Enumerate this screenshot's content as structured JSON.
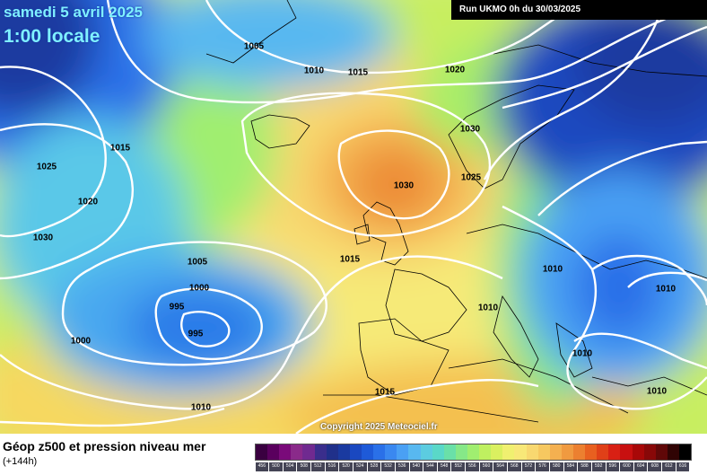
{
  "header": {
    "date": "samedi 5 avril 2025",
    "time": "1:00 locale",
    "run": "Run UKMO 0h du 30/03/2025",
    "copyright": "Copyright 2025 Meteociel.fr"
  },
  "legend": {
    "title": "Géop z500 et pression niveau mer",
    "subtitle": "(+144h)",
    "colors": [
      "#3a0040",
      "#5a005e",
      "#7a0a7a",
      "#8a2a8a",
      "#702a90",
      "#3a2e8c",
      "#20308a",
      "#1a3aa0",
      "#1a48c0",
      "#1e5ad8",
      "#2a70e8",
      "#3a88f0",
      "#4aa0f4",
      "#58b8f0",
      "#5ccce0",
      "#5ad8c8",
      "#6ae0a8",
      "#86e888",
      "#a0ee70",
      "#bff060",
      "#daf060",
      "#f0f070",
      "#f8e878",
      "#f8d870",
      "#f6c860",
      "#f4b050",
      "#f09a40",
      "#ec8030",
      "#e86020",
      "#e04018",
      "#d82014",
      "#c81010",
      "#a80808",
      "#880808",
      "#600808",
      "#300404",
      "#000000"
    ],
    "tick_labels": [
      "456",
      "500",
      "504",
      "508",
      "512",
      "516",
      "520",
      "524",
      "528",
      "532",
      "536",
      "540",
      "544",
      "548",
      "552",
      "556",
      "560",
      "564",
      "568",
      "572",
      "576",
      "580",
      "584",
      "588",
      "592",
      "596",
      "600",
      "604",
      "608",
      "612",
      "616"
    ]
  },
  "isobars": [
    "1005",
    "1010",
    "1015",
    "1020",
    "1030",
    "1015",
    "1025",
    "1020",
    "1025",
    "1030",
    "1020",
    "1005",
    "1000",
    "995",
    "995",
    "1000",
    "1010",
    "1010",
    "1010",
    "1010",
    "1010",
    "1015",
    "1010",
    "1015",
    "1010",
    "1030"
  ]
}
